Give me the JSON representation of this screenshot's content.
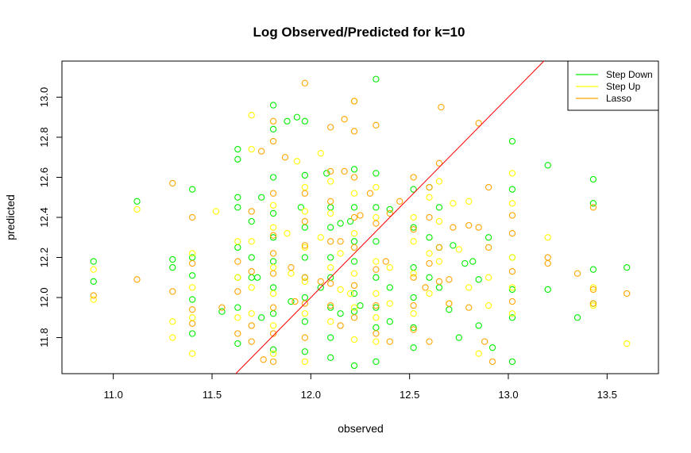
{
  "chart_data": {
    "type": "scatter",
    "title": "Log Observed/Predicted for k=10",
    "xlabel": "observed",
    "ylabel": "predicted",
    "xlim": [
      10.74,
      13.76
    ],
    "ylim": [
      11.62,
      13.18
    ],
    "x_ticks": [
      "11.0",
      "11.5",
      "12.0",
      "12.5",
      "13.0",
      "13.5"
    ],
    "y_ticks": [
      "11.8",
      "12.0",
      "12.2",
      "12.4",
      "12.6",
      "12.8",
      "13.0"
    ],
    "reference_line": {
      "type": "identity",
      "slope": 1,
      "intercept": 0,
      "color": "#ff0000"
    },
    "legend": {
      "position": "top-right"
    },
    "series": [
      {
        "name": "Step Down",
        "color": "#00ee00",
        "points": [
          [
            10.9,
            12.18
          ],
          [
            10.9,
            12.08
          ],
          [
            11.12,
            12.48
          ],
          [
            11.3,
            12.19
          ],
          [
            11.3,
            12.15
          ],
          [
            11.4,
            12.54
          ],
          [
            11.4,
            12.2
          ],
          [
            11.4,
            12.11
          ],
          [
            11.4,
            11.99
          ],
          [
            11.4,
            11.82
          ],
          [
            11.55,
            11.93
          ],
          [
            11.63,
            12.74
          ],
          [
            11.63,
            12.69
          ],
          [
            11.63,
            12.5
          ],
          [
            11.63,
            12.45
          ],
          [
            11.63,
            12.25
          ],
          [
            11.63,
            12.1
          ],
          [
            11.63,
            11.95
          ],
          [
            11.63,
            11.77
          ],
          [
            11.7,
            12.38
          ],
          [
            11.7,
            12.2
          ],
          [
            11.7,
            12.1
          ],
          [
            11.73,
            12.1
          ],
          [
            11.75,
            12.5
          ],
          [
            11.75,
            11.9
          ],
          [
            11.81,
            12.96
          ],
          [
            11.81,
            12.84
          ],
          [
            11.81,
            12.6
          ],
          [
            11.81,
            12.42
          ],
          [
            11.81,
            12.3
          ],
          [
            11.81,
            12.18
          ],
          [
            11.81,
            12.05
          ],
          [
            11.81,
            11.92
          ],
          [
            11.81,
            11.74
          ],
          [
            11.88,
            12.88
          ],
          [
            11.9,
            11.98
          ],
          [
            11.93,
            12.9
          ],
          [
            11.95,
            12.45
          ],
          [
            11.97,
            12.88
          ],
          [
            11.97,
            12.61
          ],
          [
            11.97,
            12.35
          ],
          [
            11.97,
            12.2
          ],
          [
            11.97,
            12.1
          ],
          [
            11.97,
            12.0
          ],
          [
            11.97,
            11.88
          ],
          [
            11.97,
            11.73
          ],
          [
            12.05,
            12.05
          ],
          [
            12.08,
            12.62
          ],
          [
            12.1,
            12.45
          ],
          [
            12.1,
            12.35
          ],
          [
            12.1,
            12.2
          ],
          [
            12.1,
            12.1
          ],
          [
            12.1,
            11.95
          ],
          [
            12.1,
            11.8
          ],
          [
            12.1,
            11.7
          ],
          [
            12.15,
            12.37
          ],
          [
            12.15,
            11.92
          ],
          [
            12.2,
            12.38
          ],
          [
            12.22,
            12.64
          ],
          [
            12.22,
            12.45
          ],
          [
            12.22,
            12.28
          ],
          [
            12.22,
            12.18
          ],
          [
            12.22,
            12.02
          ],
          [
            12.22,
            11.93
          ],
          [
            12.22,
            11.66
          ],
          [
            12.25,
            11.96
          ],
          [
            12.33,
            13.09
          ],
          [
            12.33,
            12.62
          ],
          [
            12.33,
            12.45
          ],
          [
            12.33,
            12.28
          ],
          [
            12.33,
            12.1
          ],
          [
            12.33,
            11.95
          ],
          [
            12.33,
            11.85
          ],
          [
            12.33,
            11.68
          ],
          [
            12.4,
            12.44
          ],
          [
            12.4,
            12.05
          ],
          [
            12.4,
            11.88
          ],
          [
            12.52,
            12.54
          ],
          [
            12.52,
            12.35
          ],
          [
            12.52,
            12.15
          ],
          [
            12.52,
            12.0
          ],
          [
            12.52,
            11.85
          ],
          [
            12.52,
            11.75
          ],
          [
            12.6,
            12.55
          ],
          [
            12.6,
            12.3
          ],
          [
            12.6,
            12.1
          ],
          [
            12.65,
            12.45
          ],
          [
            12.65,
            12.25
          ],
          [
            12.65,
            12.05
          ],
          [
            12.7,
            11.94
          ],
          [
            12.72,
            12.26
          ],
          [
            12.75,
            11.8
          ],
          [
            12.78,
            12.17
          ],
          [
            12.82,
            12.18
          ],
          [
            12.85,
            12.09
          ],
          [
            12.85,
            11.86
          ],
          [
            12.9,
            12.3
          ],
          [
            12.92,
            11.75
          ],
          [
            13.02,
            12.78
          ],
          [
            13.02,
            12.54
          ],
          [
            13.02,
            12.2
          ],
          [
            13.02,
            12.04
          ],
          [
            13.02,
            11.9
          ],
          [
            13.02,
            11.68
          ],
          [
            13.2,
            12.66
          ],
          [
            13.2,
            12.04
          ],
          [
            13.35,
            11.9
          ],
          [
            13.43,
            12.59
          ],
          [
            13.43,
            12.47
          ],
          [
            13.43,
            12.14
          ],
          [
            13.43,
            11.97
          ],
          [
            13.6,
            12.15
          ]
        ]
      },
      {
        "name": "Step Up",
        "color": "#ffff00",
        "points": [
          [
            10.9,
            12.14
          ],
          [
            10.9,
            11.99
          ],
          [
            11.12,
            12.44
          ],
          [
            11.3,
            11.88
          ],
          [
            11.3,
            11.8
          ],
          [
            11.4,
            12.22
          ],
          [
            11.4,
            12.05
          ],
          [
            11.4,
            11.9
          ],
          [
            11.4,
            11.72
          ],
          [
            11.52,
            12.43
          ],
          [
            11.63,
            12.28
          ],
          [
            11.63,
            12.1
          ],
          [
            11.63,
            11.9
          ],
          [
            11.7,
            12.91
          ],
          [
            11.7,
            12.74
          ],
          [
            11.7,
            12.28
          ],
          [
            11.7,
            12.05
          ],
          [
            11.7,
            11.92
          ],
          [
            11.81,
            12.46
          ],
          [
            11.81,
            12.35
          ],
          [
            11.81,
            12.15
          ],
          [
            11.81,
            12.02
          ],
          [
            11.81,
            11.86
          ],
          [
            11.81,
            11.72
          ],
          [
            11.88,
            12.32
          ],
          [
            11.9,
            12.12
          ],
          [
            11.93,
            12.68
          ],
          [
            11.97,
            12.55
          ],
          [
            11.97,
            12.43
          ],
          [
            11.97,
            12.25
          ],
          [
            11.97,
            12.08
          ],
          [
            11.97,
            11.92
          ],
          [
            11.97,
            11.68
          ],
          [
            12.05,
            12.72
          ],
          [
            12.05,
            12.3
          ],
          [
            12.1,
            12.58
          ],
          [
            12.1,
            12.42
          ],
          [
            12.1,
            12.15
          ],
          [
            12.1,
            11.88
          ],
          [
            12.15,
            12.22
          ],
          [
            12.15,
            12.04
          ],
          [
            12.2,
            12.02
          ],
          [
            12.22,
            12.98
          ],
          [
            12.22,
            12.52
          ],
          [
            12.22,
            12.32
          ],
          [
            12.22,
            12.12
          ],
          [
            12.22,
            11.95
          ],
          [
            12.22,
            11.79
          ],
          [
            12.33,
            12.55
          ],
          [
            12.33,
            12.4
          ],
          [
            12.33,
            12.18
          ],
          [
            12.33,
            12.02
          ],
          [
            12.33,
            11.9
          ],
          [
            12.33,
            11.78
          ],
          [
            12.4,
            12.15
          ],
          [
            12.4,
            11.97
          ],
          [
            12.52,
            12.4
          ],
          [
            12.52,
            12.28
          ],
          [
            12.52,
            12.12
          ],
          [
            12.52,
            11.92
          ],
          [
            12.6,
            12.5
          ],
          [
            12.6,
            12.22
          ],
          [
            12.6,
            12.02
          ],
          [
            12.65,
            12.58
          ],
          [
            12.65,
            12.38
          ],
          [
            12.65,
            12.18
          ],
          [
            12.7,
            11.97
          ],
          [
            12.72,
            12.47
          ],
          [
            12.75,
            12.24
          ],
          [
            12.8,
            12.48
          ],
          [
            12.8,
            12.05
          ],
          [
            12.85,
            11.72
          ],
          [
            12.9,
            12.1
          ],
          [
            12.9,
            11.96
          ],
          [
            13.02,
            12.62
          ],
          [
            13.02,
            12.47
          ],
          [
            13.02,
            12.2
          ],
          [
            13.02,
            12.05
          ],
          [
            13.02,
            11.92
          ],
          [
            13.2,
            12.3
          ],
          [
            13.43,
            12.05
          ],
          [
            13.43,
            11.96
          ],
          [
            13.6,
            11.77
          ]
        ]
      },
      {
        "name": "Lasso",
        "color": "#ffa500",
        "points": [
          [
            10.9,
            12.01
          ],
          [
            11.12,
            12.09
          ],
          [
            11.3,
            12.57
          ],
          [
            11.3,
            12.03
          ],
          [
            11.4,
            12.4
          ],
          [
            11.4,
            12.17
          ],
          [
            11.4,
            11.94
          ],
          [
            11.4,
            11.87
          ],
          [
            11.55,
            11.95
          ],
          [
            11.63,
            12.18
          ],
          [
            11.63,
            12.03
          ],
          [
            11.63,
            11.82
          ],
          [
            11.7,
            12.43
          ],
          [
            11.7,
            12.13
          ],
          [
            11.7,
            11.86
          ],
          [
            11.7,
            11.78
          ],
          [
            11.75,
            12.73
          ],
          [
            11.76,
            11.69
          ],
          [
            11.81,
            12.88
          ],
          [
            11.81,
            12.78
          ],
          [
            11.81,
            12.52
          ],
          [
            11.81,
            12.31
          ],
          [
            11.81,
            12.22
          ],
          [
            11.81,
            12.12
          ],
          [
            11.81,
            11.95
          ],
          [
            11.81,
            11.82
          ],
          [
            11.81,
            11.68
          ],
          [
            11.87,
            12.7
          ],
          [
            11.9,
            12.15
          ],
          [
            11.92,
            11.98
          ],
          [
            11.97,
            13.07
          ],
          [
            11.97,
            12.52
          ],
          [
            11.97,
            12.38
          ],
          [
            11.97,
            12.26
          ],
          [
            11.97,
            12.1
          ],
          [
            11.97,
            11.97
          ],
          [
            11.97,
            11.8
          ],
          [
            12.05,
            12.08
          ],
          [
            12.1,
            12.85
          ],
          [
            12.1,
            12.63
          ],
          [
            12.1,
            12.48
          ],
          [
            12.1,
            12.28
          ],
          [
            12.1,
            12.07
          ],
          [
            12.1,
            11.96
          ],
          [
            12.15,
            12.28
          ],
          [
            12.15,
            11.86
          ],
          [
            12.17,
            12.89
          ],
          [
            12.17,
            12.63
          ],
          [
            12.22,
            12.98
          ],
          [
            12.22,
            12.83
          ],
          [
            12.22,
            12.6
          ],
          [
            12.22,
            12.4
          ],
          [
            12.22,
            12.25
          ],
          [
            12.22,
            12.06
          ],
          [
            12.22,
            11.9
          ],
          [
            12.25,
            12.41
          ],
          [
            12.3,
            12.52
          ],
          [
            12.33,
            12.86
          ],
          [
            12.33,
            12.37
          ],
          [
            12.33,
            12.14
          ],
          [
            12.33,
            11.96
          ],
          [
            12.33,
            11.82
          ],
          [
            12.38,
            12.18
          ],
          [
            12.4,
            12.42
          ],
          [
            12.4,
            11.78
          ],
          [
            12.45,
            12.48
          ],
          [
            12.52,
            12.6
          ],
          [
            12.52,
            12.34
          ],
          [
            12.52,
            12.1
          ],
          [
            12.52,
            11.96
          ],
          [
            12.52,
            11.84
          ],
          [
            12.58,
            12.05
          ],
          [
            12.6,
            12.55
          ],
          [
            12.6,
            12.4
          ],
          [
            12.6,
            12.17
          ],
          [
            12.6,
            11.78
          ],
          [
            12.65,
            12.67
          ],
          [
            12.65,
            12.25
          ],
          [
            12.65,
            12.08
          ],
          [
            12.66,
            12.95
          ],
          [
            12.7,
            12.09
          ],
          [
            12.7,
            11.97
          ],
          [
            12.72,
            12.35
          ],
          [
            12.8,
            12.36
          ],
          [
            12.8,
            11.95
          ],
          [
            12.85,
            12.87
          ],
          [
            12.85,
            12.35
          ],
          [
            12.88,
            11.78
          ],
          [
            12.9,
            12.55
          ],
          [
            12.9,
            12.25
          ],
          [
            12.92,
            11.68
          ],
          [
            13.02,
            12.41
          ],
          [
            13.02,
            12.32
          ],
          [
            13.02,
            12.13
          ],
          [
            13.02,
            11.98
          ],
          [
            13.2,
            12.2
          ],
          [
            13.2,
            12.17
          ],
          [
            13.35,
            12.12
          ],
          [
            13.43,
            12.04
          ],
          [
            13.43,
            11.97
          ],
          [
            13.43,
            12.45
          ],
          [
            13.6,
            12.02
          ]
        ]
      }
    ]
  }
}
